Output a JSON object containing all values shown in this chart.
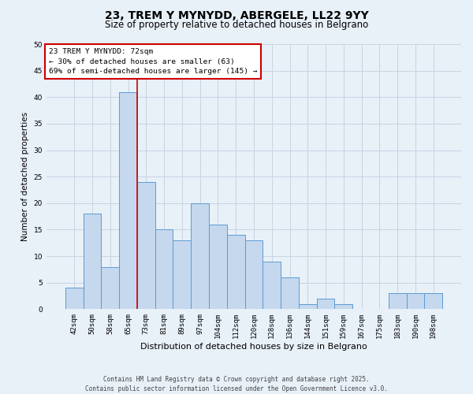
{
  "title": "23, TREM Y MYNYDD, ABERGELE, LL22 9YY",
  "subtitle": "Size of property relative to detached houses in Belgrano",
  "xlabel": "Distribution of detached houses by size in Belgrano",
  "ylabel": "Number of detached properties",
  "categories": [
    "42sqm",
    "50sqm",
    "58sqm",
    "65sqm",
    "73sqm",
    "81sqm",
    "89sqm",
    "97sqm",
    "104sqm",
    "112sqm",
    "120sqm",
    "128sqm",
    "136sqm",
    "144sqm",
    "151sqm",
    "159sqm",
    "167sqm",
    "175sqm",
    "183sqm",
    "190sqm",
    "198sqm"
  ],
  "values": [
    4,
    18,
    8,
    41,
    24,
    15,
    13,
    20,
    16,
    14,
    13,
    9,
    6,
    1,
    2,
    1,
    0,
    0,
    3,
    3,
    3
  ],
  "bar_color": "#c5d8ed",
  "bar_edge_color": "#5b9bd5",
  "grid_color": "#c8d4e3",
  "background_color": "#e8f0f8",
  "property_line_color": "#cc0000",
  "property_line_index": 3.5,
  "annotation_text": "23 TREM Y MYNYDD: 72sqm\n← 30% of detached houses are smaller (63)\n69% of semi-detached houses are larger (145) →",
  "annotation_box_color": "#ffffff",
  "annotation_box_edge": "#cc0000",
  "ylim": [
    0,
    50
  ],
  "yticks": [
    0,
    5,
    10,
    15,
    20,
    25,
    30,
    35,
    40,
    45,
    50
  ],
  "footer": "Contains HM Land Registry data © Crown copyright and database right 2025.\nContains public sector information licensed under the Open Government Licence v3.0.",
  "title_fontsize": 10,
  "subtitle_fontsize": 8.5,
  "xlabel_fontsize": 8,
  "ylabel_fontsize": 7.5,
  "tick_fontsize": 6.5,
  "annotation_fontsize": 6.8,
  "footer_fontsize": 5.5
}
